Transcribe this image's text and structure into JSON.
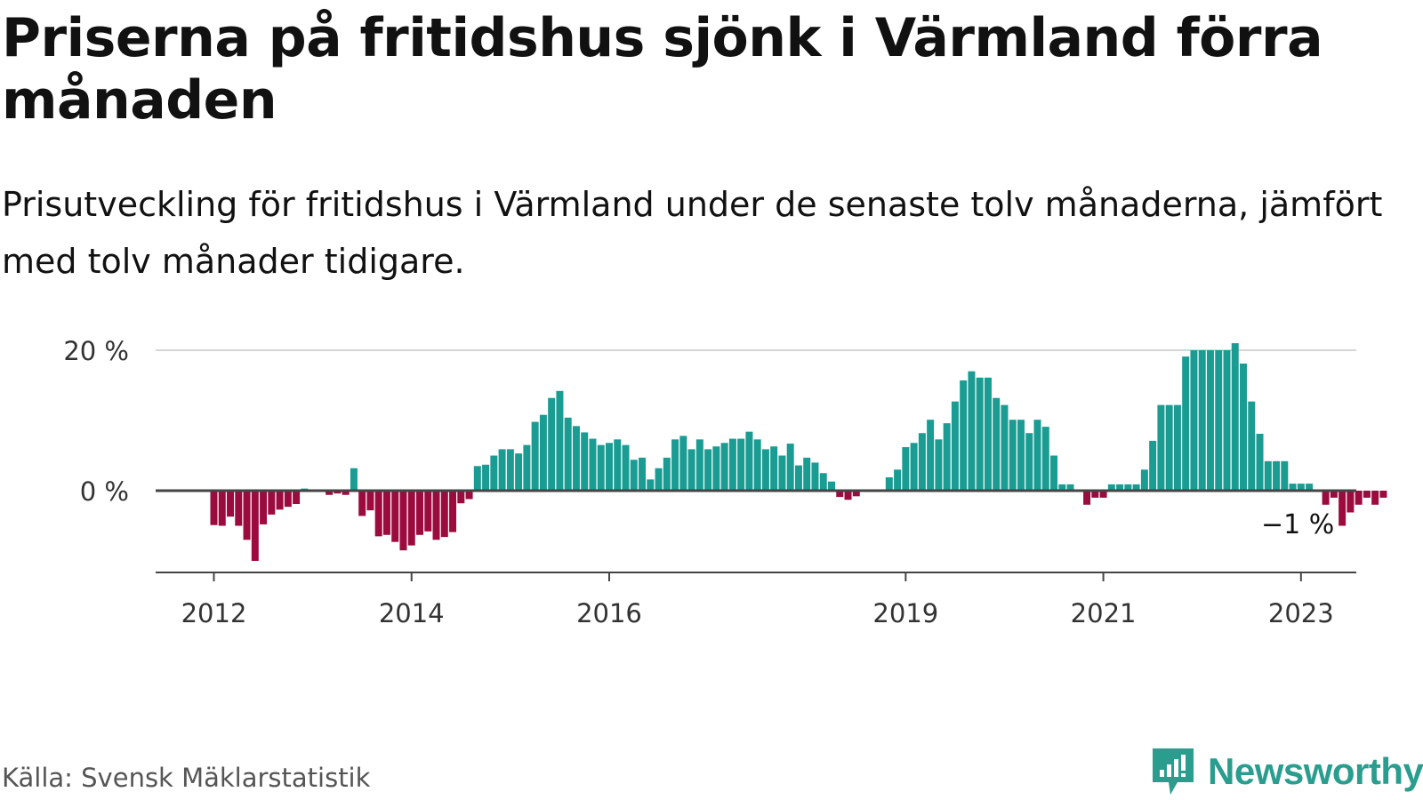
{
  "header": {
    "title": "Priserna på fritidshus sjönk i Värmland förra månaden",
    "subtitle": "Prisutveckling för fritidshus i Värmland under de senaste tolv månaderna, jämfört med tolv månader tidigare."
  },
  "footer": {
    "source": "Källa: Svensk Mäklarstatistik",
    "brand": "Newsworthy"
  },
  "colors": {
    "positive": "#1a9c93",
    "negative": "#9b0b3e",
    "baseline": "#444444",
    "grid": "#d6d6d6",
    "brand": "#2a9d8f"
  },
  "chart_data": {
    "type": "bar",
    "title": "Priserna på fritidshus sjönk i Värmland förra månaden",
    "ylabel": "",
    "xlabel": "",
    "ylim": [
      -11,
      21
    ],
    "grid": true,
    "yticks": [
      {
        "value": 0,
        "label": "0 %"
      },
      {
        "value": 20,
        "label": "20 %"
      }
    ],
    "xticks": [
      {
        "label": "2012",
        "x": "2012-01"
      },
      {
        "label": "2014",
        "x": "2014-01"
      },
      {
        "label": "2016",
        "x": "2016-01"
      },
      {
        "label": "2019",
        "x": "2019-01"
      },
      {
        "label": "2021",
        "x": "2021-01"
      },
      {
        "label": "2023",
        "x": "2023-01"
      }
    ],
    "annotations": [
      {
        "text": "−1 %",
        "x": "2023-10",
        "value": -1
      }
    ],
    "series": [
      {
        "points": [
          {
            "x": "2012-01",
            "value": -4.9
          },
          {
            "x": "2012-02",
            "value": -5.0
          },
          {
            "x": "2012-03",
            "value": -3.7
          },
          {
            "x": "2012-04",
            "value": -5.0
          },
          {
            "x": "2012-05",
            "value": -7.0
          },
          {
            "x": "2012-06",
            "value": -10.0
          },
          {
            "x": "2012-07",
            "value": -4.8
          },
          {
            "x": "2012-08",
            "value": -3.4
          },
          {
            "x": "2012-09",
            "value": -2.7
          },
          {
            "x": "2012-10",
            "value": -2.3
          },
          {
            "x": "2012-11",
            "value": -1.9
          },
          {
            "x": "2012-12",
            "value": 0.3
          },
          {
            "x": "2013-01",
            "value": 0.0
          },
          {
            "x": "2013-02",
            "value": 0.0
          },
          {
            "x": "2013-03",
            "value": -0.6
          },
          {
            "x": "2013-04",
            "value": -0.4
          },
          {
            "x": "2013-05",
            "value": -0.6
          },
          {
            "x": "2013-06",
            "value": 3.2
          },
          {
            "x": "2013-07",
            "value": -3.6
          },
          {
            "x": "2013-08",
            "value": -2.8
          },
          {
            "x": "2013-09",
            "value": -6.5
          },
          {
            "x": "2013-10",
            "value": -6.3
          },
          {
            "x": "2013-11",
            "value": -7.3
          },
          {
            "x": "2013-12",
            "value": -8.5
          },
          {
            "x": "2014-01",
            "value": -7.8
          },
          {
            "x": "2014-02",
            "value": -6.3
          },
          {
            "x": "2014-03",
            "value": -5.8
          },
          {
            "x": "2014-04",
            "value": -7.0
          },
          {
            "x": "2014-05",
            "value": -6.6
          },
          {
            "x": "2014-06",
            "value": -5.9
          },
          {
            "x": "2014-07",
            "value": -1.8
          },
          {
            "x": "2014-08",
            "value": -1.2
          },
          {
            "x": "2014-09",
            "value": 3.5
          },
          {
            "x": "2014-10",
            "value": 3.7
          },
          {
            "x": "2014-11",
            "value": 5.0
          },
          {
            "x": "2014-12",
            "value": 5.9
          },
          {
            "x": "2015-01",
            "value": 5.9
          },
          {
            "x": "2015-02",
            "value": 5.3
          },
          {
            "x": "2015-03",
            "value": 6.5
          },
          {
            "x": "2015-04",
            "value": 9.8
          },
          {
            "x": "2015-05",
            "value": 10.8
          },
          {
            "x": "2015-06",
            "value": 13.2
          },
          {
            "x": "2015-07",
            "value": 14.2
          },
          {
            "x": "2015-08",
            "value": 10.4
          },
          {
            "x": "2015-09",
            "value": 9.2
          },
          {
            "x": "2015-10",
            "value": 8.3
          },
          {
            "x": "2015-11",
            "value": 7.4
          },
          {
            "x": "2015-12",
            "value": 6.5
          },
          {
            "x": "2016-01",
            "value": 6.8
          },
          {
            "x": "2016-02",
            "value": 7.3
          },
          {
            "x": "2016-03",
            "value": 6.5
          },
          {
            "x": "2016-04",
            "value": 4.4
          },
          {
            "x": "2016-05",
            "value": 4.7
          },
          {
            "x": "2016-06",
            "value": 1.6
          },
          {
            "x": "2016-07",
            "value": 3.2
          },
          {
            "x": "2016-08",
            "value": 4.7
          },
          {
            "x": "2016-09",
            "value": 7.3
          },
          {
            "x": "2016-10",
            "value": 7.8
          },
          {
            "x": "2016-11",
            "value": 5.9
          },
          {
            "x": "2016-12",
            "value": 7.3
          },
          {
            "x": "2017-01",
            "value": 5.9
          },
          {
            "x": "2017-02",
            "value": 6.3
          },
          {
            "x": "2017-03",
            "value": 6.8
          },
          {
            "x": "2017-04",
            "value": 7.4
          },
          {
            "x": "2017-05",
            "value": 7.4
          },
          {
            "x": "2017-06",
            "value": 8.4
          },
          {
            "x": "2017-07",
            "value": 7.3
          },
          {
            "x": "2017-08",
            "value": 5.9
          },
          {
            "x": "2017-09",
            "value": 6.3
          },
          {
            "x": "2017-10",
            "value": 5.0
          },
          {
            "x": "2017-11",
            "value": 6.7
          },
          {
            "x": "2017-12",
            "value": 3.6
          },
          {
            "x": "2018-01",
            "value": 4.7
          },
          {
            "x": "2018-02",
            "value": 4.0
          },
          {
            "x": "2018-03",
            "value": 2.5
          },
          {
            "x": "2018-04",
            "value": 1.3
          },
          {
            "x": "2018-05",
            "value": -0.9
          },
          {
            "x": "2018-06",
            "value": -1.3
          },
          {
            "x": "2018-07",
            "value": -0.8
          },
          {
            "x": "2018-08",
            "value": 0.0
          },
          {
            "x": "2018-09",
            "value": 0.0
          },
          {
            "x": "2018-10",
            "value": 0.0
          },
          {
            "x": "2018-11",
            "value": 1.9
          },
          {
            "x": "2018-12",
            "value": 3.0
          },
          {
            "x": "2019-01",
            "value": 6.2
          },
          {
            "x": "2019-02",
            "value": 6.8
          },
          {
            "x": "2019-03",
            "value": 8.2
          },
          {
            "x": "2019-04",
            "value": 10.1
          },
          {
            "x": "2019-05",
            "value": 7.3
          },
          {
            "x": "2019-06",
            "value": 9.6
          },
          {
            "x": "2019-07",
            "value": 12.7
          },
          {
            "x": "2019-08",
            "value": 15.7
          },
          {
            "x": "2019-09",
            "value": 17.0
          },
          {
            "x": "2019-10",
            "value": 16.1
          },
          {
            "x": "2019-11",
            "value": 16.1
          },
          {
            "x": "2019-12",
            "value": 13.2
          },
          {
            "x": "2020-01",
            "value": 12.2
          },
          {
            "x": "2020-02",
            "value": 10.1
          },
          {
            "x": "2020-03",
            "value": 10.1
          },
          {
            "x": "2020-04",
            "value": 8.2
          },
          {
            "x": "2020-05",
            "value": 10.1
          },
          {
            "x": "2020-06",
            "value": 9.1
          },
          {
            "x": "2020-07",
            "value": 5.0
          },
          {
            "x": "2020-08",
            "value": 0.9
          },
          {
            "x": "2020-09",
            "value": 0.9
          },
          {
            "x": "2020-10",
            "value": 0.0
          },
          {
            "x": "2020-11",
            "value": -2.0
          },
          {
            "x": "2020-12",
            "value": -1.0
          },
          {
            "x": "2021-01",
            "value": -1.0
          },
          {
            "x": "2021-02",
            "value": 0.9
          },
          {
            "x": "2021-03",
            "value": 0.9
          },
          {
            "x": "2021-04",
            "value": 0.9
          },
          {
            "x": "2021-05",
            "value": 0.9
          },
          {
            "x": "2021-06",
            "value": 3.0
          },
          {
            "x": "2021-07",
            "value": 7.1
          },
          {
            "x": "2021-08",
            "value": 12.2
          },
          {
            "x": "2021-09",
            "value": 12.2
          },
          {
            "x": "2021-10",
            "value": 12.2
          },
          {
            "x": "2021-11",
            "value": 19.1
          },
          {
            "x": "2021-12",
            "value": 20.0
          },
          {
            "x": "2022-01",
            "value": 20.0
          },
          {
            "x": "2022-02",
            "value": 20.0
          },
          {
            "x": "2022-03",
            "value": 20.0
          },
          {
            "x": "2022-04",
            "value": 20.0
          },
          {
            "x": "2022-05",
            "value": 21.0
          },
          {
            "x": "2022-06",
            "value": 18.1
          },
          {
            "x": "2022-07",
            "value": 12.7
          },
          {
            "x": "2022-08",
            "value": 8.1
          },
          {
            "x": "2022-09",
            "value": 4.2
          },
          {
            "x": "2022-10",
            "value": 4.2
          },
          {
            "x": "2022-11",
            "value": 4.2
          },
          {
            "x": "2022-12",
            "value": 1.0
          },
          {
            "x": "2023-01",
            "value": 1.0
          },
          {
            "x": "2023-02",
            "value": 1.0
          },
          {
            "x": "2023-03",
            "value": 0.0
          },
          {
            "x": "2023-04",
            "value": -2.0
          },
          {
            "x": "2023-05",
            "value": -1.0
          },
          {
            "x": "2023-06",
            "value": -5.0
          },
          {
            "x": "2023-07",
            "value": -3.1
          },
          {
            "x": "2023-08",
            "value": -2.0
          },
          {
            "x": "2023-09",
            "value": -1.0
          },
          {
            "x": "2023-10",
            "value": -2.0
          },
          {
            "x": "2023-11",
            "value": -1.0
          }
        ]
      }
    ]
  }
}
